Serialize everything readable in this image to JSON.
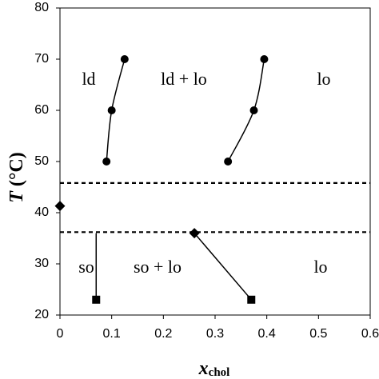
{
  "chart_data": {
    "type": "scatter",
    "x_label": "x",
    "x_label_sub": "chol",
    "y_label": "T",
    "y_label_unit": "(°C)",
    "xlim": [
      0,
      0.6
    ],
    "ylim": [
      20,
      80
    ],
    "xticks": [
      0,
      0.1,
      0.2,
      0.3,
      0.4,
      0.5,
      0.6
    ],
    "yticks": [
      20,
      30,
      40,
      50,
      60,
      70,
      80
    ],
    "color": "#000000",
    "series": [
      {
        "x": [
          0.09,
          0.1,
          0.125
        ],
        "values": [
          50,
          60,
          70
        ],
        "markers": [
          "circle",
          "circle",
          "circle"
        ],
        "line": "curve"
      },
      {
        "x": [
          0.325,
          0.375,
          0.395
        ],
        "values": [
          50,
          60,
          70
        ],
        "markers": [
          "circle",
          "circle",
          "circle"
        ],
        "line": "curve"
      },
      {
        "x": [
          0
        ],
        "values": [
          41.3
        ],
        "markers": [
          "diamond"
        ],
        "line": "none"
      },
      {
        "x": [
          0.26,
          0.37
        ],
        "values": [
          36,
          23
        ],
        "markers": [
          "diamond",
          "square"
        ],
        "line": "straight"
      },
      {
        "x": [
          0.07,
          0.07
        ],
        "values": [
          23,
          36
        ],
        "markers": [
          "square",
          null
        ],
        "line": "straight"
      }
    ],
    "hlines": [
      {
        "value": 45.8,
        "style": "dashed"
      },
      {
        "value": 36.2,
        "style": "dashed"
      }
    ],
    "annotations": [
      "ld",
      "ld + lo",
      "lo",
      "so",
      "so + lo",
      "lo"
    ]
  }
}
